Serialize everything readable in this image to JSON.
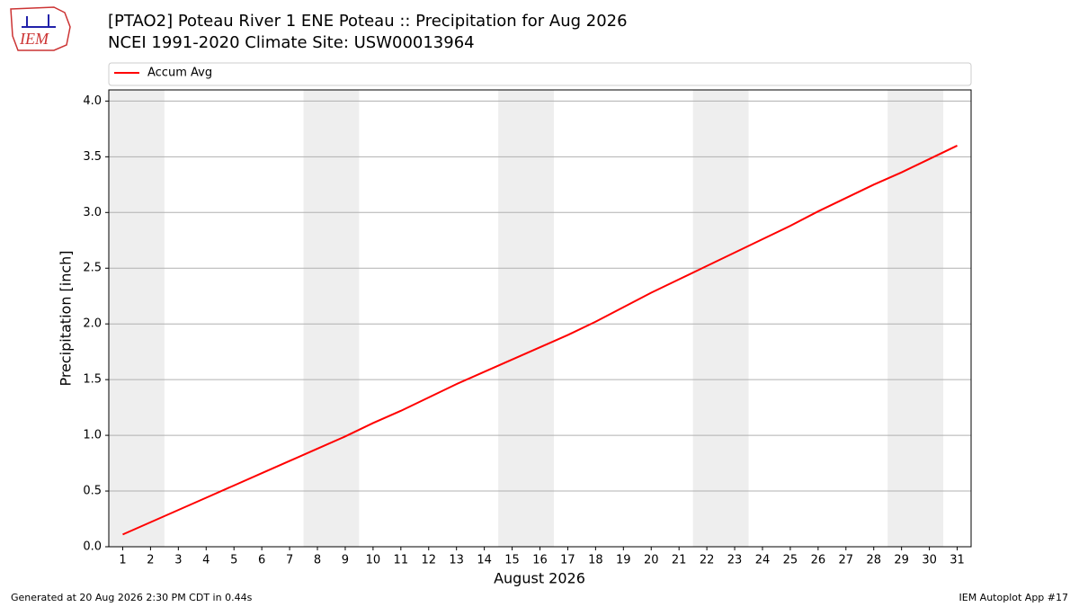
{
  "logo_text": "IEM",
  "footer": {
    "left": "Generated at 20 Aug 2026 2:30 PM CDT in 0.44s",
    "right": "IEM Autoplot App #17"
  },
  "chart_data": {
    "type": "line",
    "title": "[PTAO2] Poteau River 1 ENE Poteau :: Precipitation for Aug 2026",
    "subtitle": "NCEI 1991-2020 Climate Site: USW00013964",
    "x_label": "August 2026",
    "y_label": "Precipitation [inch]",
    "x": [
      1,
      2,
      3,
      4,
      5,
      6,
      7,
      8,
      9,
      10,
      11,
      12,
      13,
      14,
      15,
      16,
      17,
      18,
      19,
      20,
      21,
      22,
      23,
      24,
      25,
      26,
      27,
      28,
      29,
      30,
      31
    ],
    "series": [
      {
        "name": "Accum Avg",
        "color": "#ff0000",
        "values": [
          0.11,
          0.22,
          0.33,
          0.44,
          0.55,
          0.66,
          0.77,
          0.88,
          0.99,
          1.11,
          1.22,
          1.34,
          1.46,
          1.57,
          1.68,
          1.79,
          1.9,
          2.02,
          2.15,
          2.28,
          2.4,
          2.52,
          2.64,
          2.76,
          2.88,
          3.01,
          3.13,
          3.25,
          3.36,
          3.48,
          3.6
        ]
      }
    ],
    "xlim": [
      0.5,
      31.5
    ],
    "xticks": [
      1,
      2,
      3,
      4,
      5,
      6,
      7,
      8,
      9,
      10,
      11,
      12,
      13,
      14,
      15,
      16,
      17,
      18,
      19,
      20,
      21,
      22,
      23,
      24,
      25,
      26,
      27,
      28,
      29,
      30,
      31
    ],
    "ylim": [
      0,
      4.1
    ],
    "yticks": [
      {
        "value": 0,
        "label": "0.0"
      },
      0.5,
      {
        "value": 1,
        "label": "1.0"
      },
      1.5,
      {
        "value": 2,
        "label": "2.0"
      },
      2.5,
      {
        "value": 3,
        "label": "3.0"
      },
      3.5,
      {
        "value": 4,
        "label": "4.0"
      }
    ],
    "shaded_spans": [
      [
        0.5,
        2.5
      ],
      [
        7.5,
        9.5
      ],
      [
        14.5,
        16.5
      ],
      [
        21.5,
        23.5
      ],
      [
        28.5,
        30.5
      ]
    ],
    "shade_color": "#eeeeee",
    "grid": true,
    "legend": "top"
  }
}
